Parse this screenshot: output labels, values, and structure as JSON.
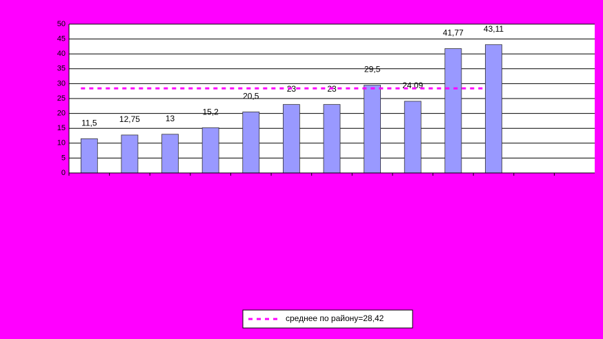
{
  "chart_data": {
    "type": "bar",
    "categories": [
      null,
      null,
      null,
      null,
      null,
      null,
      null,
      null,
      null,
      null,
      null,
      null,
      null
    ],
    "values": [
      11.5,
      12.75,
      13,
      15.2,
      20.5,
      23,
      23,
      29.5,
      24.09,
      41.77,
      43.11,
      null,
      null
    ],
    "value_labels": [
      "11,5",
      "12,75",
      "13",
      "15,2",
      "20,5",
      "23",
      "23",
      "29,5",
      "24,09",
      "41,77",
      "43,11",
      null,
      null
    ],
    "color": "#9999ff",
    "ylim": [
      0,
      50
    ],
    "yticks": [
      0,
      5,
      10,
      15,
      20,
      25,
      30,
      35,
      40,
      45,
      50
    ],
    "grid": true,
    "average": {
      "name": "среднее по району=28,42",
      "value": 28.42,
      "color": "#ff00ff"
    },
    "legend": "bottom"
  }
}
